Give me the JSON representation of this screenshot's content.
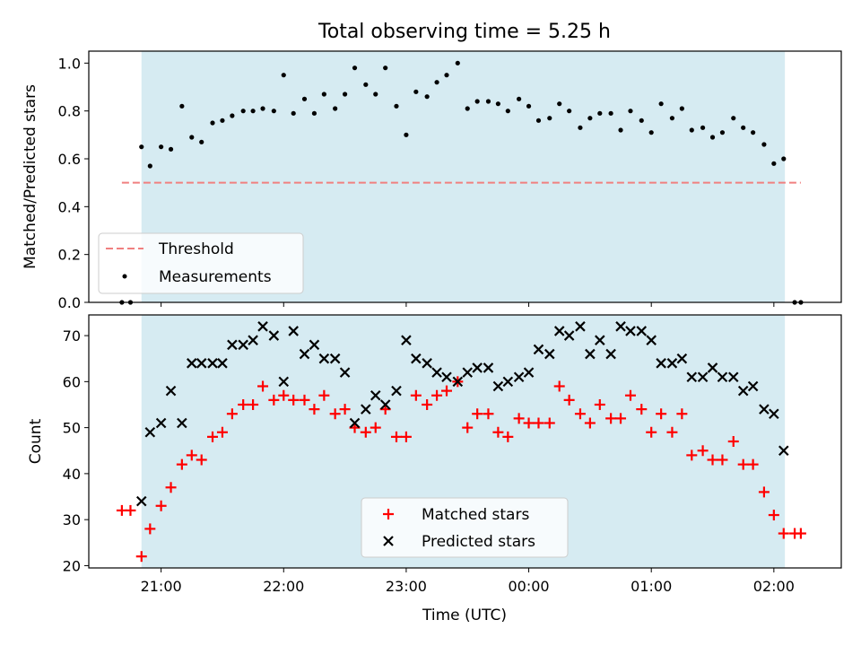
{
  "chart_data": [
    {
      "type": "scatter",
      "title": "Total observing time = 5.25 h",
      "xlabel": "",
      "ylabel": "Matched/Predicted stars",
      "xlim": [
        -0.59,
        5.55
      ],
      "ylim": [
        0.0,
        1.05
      ],
      "yticks": [
        0.0,
        0.2,
        0.4,
        0.6,
        0.8,
        1.0
      ],
      "ytick_labels": [
        "0.0",
        "0.2",
        "0.4",
        "0.6",
        "0.8",
        "1.0"
      ],
      "x_unit_note": "hours after 21:00 UTC",
      "shaded_span": {
        "x0": -0.16,
        "x1": 5.09,
        "color": "#add8e6"
      },
      "threshold": {
        "name": "Threshold",
        "y": 0.5,
        "x0": -0.32,
        "x1": 5.22,
        "color": "#f08080",
        "style": "dashed"
      },
      "legend": {
        "position": "lower-left",
        "entries": [
          "Threshold",
          "Measurements"
        ]
      },
      "series": [
        {
          "name": "Measurements",
          "marker": "dot",
          "color": "#000000",
          "x": [
            -0.32,
            -0.25,
            -0.16,
            -0.09,
            0.0,
            0.08,
            0.17,
            0.25,
            0.33,
            0.42,
            0.5,
            0.58,
            0.67,
            0.75,
            0.83,
            0.92,
            1.0,
            1.08,
            1.17,
            1.25,
            1.33,
            1.42,
            1.5,
            1.58,
            1.67,
            1.75,
            1.83,
            1.92,
            2.0,
            2.08,
            2.17,
            2.25,
            2.33,
            2.42,
            2.5,
            2.58,
            2.67,
            2.75,
            2.83,
            2.92,
            3.0,
            3.08,
            3.17,
            3.25,
            3.33,
            3.42,
            3.5,
            3.58,
            3.67,
            3.75,
            3.83,
            3.92,
            4.0,
            4.08,
            4.17,
            4.25,
            4.33,
            4.42,
            4.5,
            4.58,
            4.67,
            4.75,
            4.83,
            4.92,
            5.0,
            5.08,
            5.17,
            5.22
          ],
          "y": [
            0.0,
            0.0,
            0.65,
            0.57,
            0.65,
            0.64,
            0.82,
            0.69,
            0.67,
            0.75,
            0.76,
            0.78,
            0.8,
            0.8,
            0.81,
            0.8,
            0.95,
            0.79,
            0.85,
            0.79,
            0.87,
            0.81,
            0.87,
            0.98,
            0.91,
            0.87,
            0.98,
            0.82,
            0.7,
            0.88,
            0.86,
            0.92,
            0.95,
            1.0,
            0.81,
            0.84,
            0.84,
            0.83,
            0.8,
            0.85,
            0.82,
            0.76,
            0.77,
            0.83,
            0.8,
            0.73,
            0.77,
            0.79,
            0.79,
            0.72,
            0.8,
            0.76,
            0.71,
            0.83,
            0.77,
            0.81,
            0.72,
            0.73,
            0.69,
            0.71,
            0.77,
            0.73,
            0.71,
            0.66,
            0.58,
            0.6,
            0.0,
            0.0
          ]
        }
      ]
    },
    {
      "type": "scatter",
      "title": "",
      "xlabel": "Time (UTC)",
      "ylabel": "Count",
      "xlim": [
        -0.59,
        5.55
      ],
      "ylim": [
        19.5,
        74.5
      ],
      "yticks": [
        20,
        30,
        40,
        50,
        60,
        70
      ],
      "ytick_labels": [
        "20",
        "30",
        "40",
        "50",
        "60",
        "70"
      ],
      "xticks": [
        0,
        1,
        2,
        3,
        4,
        5
      ],
      "xtick_labels": [
        "21:00",
        "22:00",
        "23:00",
        "00:00",
        "01:00",
        "02:00"
      ],
      "x_unit_note": "hours after 21:00 UTC",
      "shaded_span": {
        "x0": -0.16,
        "x1": 5.09,
        "color": "#add8e6"
      },
      "legend": {
        "position": "lower-center",
        "entries": [
          "Matched stars",
          "Predicted stars"
        ]
      },
      "series": [
        {
          "name": "Matched stars",
          "marker": "plus",
          "color": "#ff0000",
          "x": [
            -0.32,
            -0.25,
            -0.16,
            -0.09,
            0.0,
            0.08,
            0.17,
            0.25,
            0.33,
            0.42,
            0.5,
            0.58,
            0.67,
            0.75,
            0.83,
            0.92,
            1.0,
            1.08,
            1.17,
            1.25,
            1.33,
            1.42,
            1.5,
            1.58,
            1.67,
            1.75,
            1.83,
            1.92,
            2.0,
            2.08,
            2.17,
            2.25,
            2.33,
            2.42,
            2.5,
            2.58,
            2.67,
            2.75,
            2.83,
            2.92,
            3.0,
            3.08,
            3.17,
            3.25,
            3.33,
            3.42,
            3.5,
            3.58,
            3.67,
            3.75,
            3.83,
            3.92,
            4.0,
            4.08,
            4.17,
            4.25,
            4.33,
            4.42,
            4.5,
            4.58,
            4.67,
            4.75,
            4.83,
            4.92,
            5.0,
            5.08,
            5.17,
            5.22
          ],
          "y": [
            32,
            32,
            22,
            28,
            33,
            37,
            42,
            44,
            43,
            48,
            49,
            53,
            55,
            55,
            59,
            56,
            57,
            56,
            56,
            54,
            57,
            53,
            54,
            50,
            49,
            50,
            54,
            48,
            48,
            57,
            55,
            57,
            58,
            60,
            50,
            53,
            53,
            49,
            48,
            52,
            51,
            51,
            51,
            59,
            56,
            53,
            51,
            55,
            52,
            52,
            57,
            54,
            49,
            53,
            49,
            53,
            44,
            45,
            43,
            43,
            47,
            42,
            42,
            36,
            31,
            27,
            27,
            27
          ]
        },
        {
          "name": "Predicted stars",
          "marker": "x",
          "color": "#000000",
          "x": [
            -0.16,
            -0.09,
            0.0,
            0.08,
            0.17,
            0.25,
            0.33,
            0.42,
            0.5,
            0.58,
            0.67,
            0.75,
            0.83,
            0.92,
            1.0,
            1.08,
            1.17,
            1.25,
            1.33,
            1.42,
            1.5,
            1.58,
            1.67,
            1.75,
            1.83,
            1.92,
            2.0,
            2.08,
            2.17,
            2.25,
            2.33,
            2.42,
            2.5,
            2.58,
            2.67,
            2.75,
            2.83,
            2.92,
            3.0,
            3.08,
            3.17,
            3.25,
            3.33,
            3.42,
            3.5,
            3.58,
            3.67,
            3.75,
            3.83,
            3.92,
            4.0,
            4.08,
            4.17,
            4.25,
            4.33,
            4.42,
            4.5,
            4.58,
            4.67,
            4.75,
            4.83,
            4.92,
            5.0,
            5.08
          ],
          "y": [
            34,
            49,
            51,
            58,
            51,
            64,
            64,
            64,
            64,
            68,
            68,
            69,
            72,
            70,
            60,
            71,
            66,
            68,
            65,
            65,
            62,
            51,
            54,
            57,
            55,
            58,
            69,
            65,
            64,
            62,
            61,
            60,
            62,
            63,
            63,
            59,
            60,
            61,
            62,
            67,
            66,
            71,
            70,
            72,
            66,
            69,
            66,
            72,
            71,
            71,
            69,
            64,
            64,
            65,
            61,
            61,
            63,
            61,
            61,
            58,
            59,
            54,
            53,
            45
          ]
        }
      ]
    }
  ]
}
